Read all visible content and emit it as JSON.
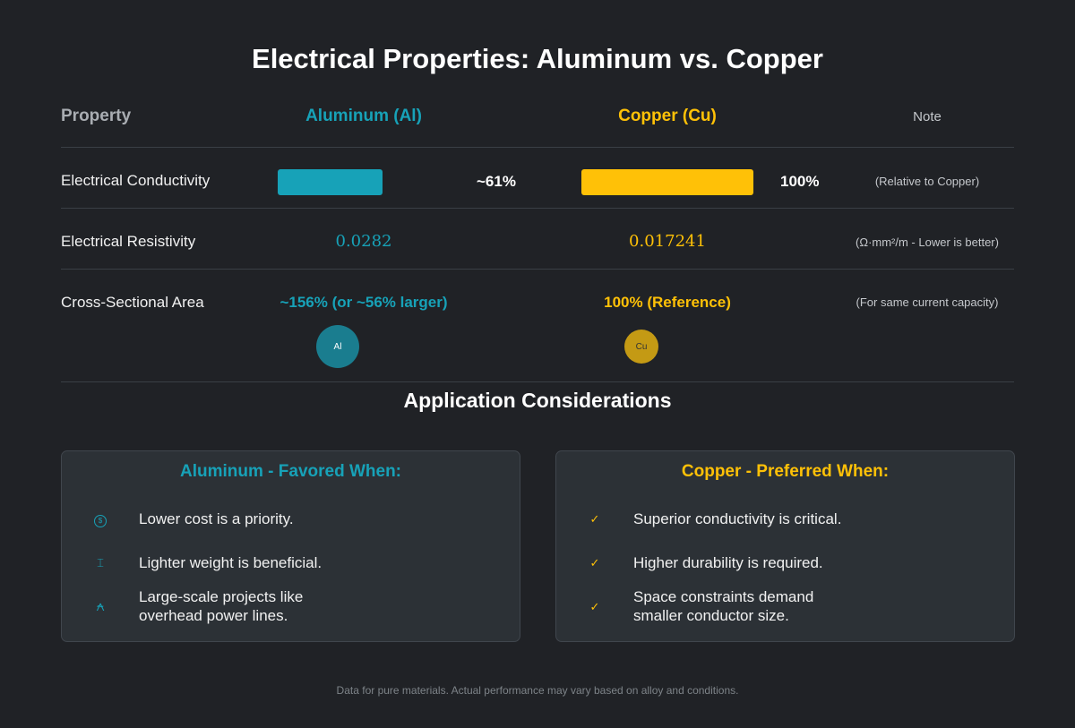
{
  "title": "Electrical Properties: Aluminum vs. Copper",
  "colors": {
    "aluminum": "#17a2b8",
    "copper": "#ffc107",
    "background": "#202226"
  },
  "table": {
    "headers": {
      "property": "Property",
      "aluminum": "Aluminum (Al)",
      "copper": "Copper (Cu)",
      "note": "Note"
    },
    "conductivity": {
      "label": "Electrical Conductivity",
      "al_value": "~61%",
      "al_fraction": 0.61,
      "cu_value": "100%",
      "cu_fraction": 1.0,
      "note": "(Relative to Copper)"
    },
    "resistivity": {
      "label": "Electrical Resistivity",
      "al_value": "0.0282",
      "cu_value": "0.017241",
      "note": "(Ω·mm²/m - Lower is better)"
    },
    "area": {
      "label": "Cross-Sectional Area",
      "al_value": "~156% (or ~56% larger)",
      "cu_value": "100% (Reference)",
      "note": "(For same current capacity)",
      "al_circle": "Al",
      "cu_circle": "Cu"
    }
  },
  "section_title": "Application Considerations",
  "aluminum_card": {
    "title": "Aluminum - Favored When:",
    "items": [
      {
        "icon": "dollar-coin-icon",
        "glyph": "$",
        "text": "Lower cost is a priority."
      },
      {
        "icon": "weight-icon",
        "glyph": "⌶",
        "text": "Lighter weight is beneficial."
      },
      {
        "icon": "power-tower-icon",
        "glyph": "⍲",
        "text": "Large-scale projects like overhead power lines."
      }
    ]
  },
  "copper_card": {
    "title": "Copper - Preferred When:",
    "items": [
      {
        "icon": "check-icon",
        "glyph": "✓",
        "text": "Superior conductivity is critical."
      },
      {
        "icon": "check-icon",
        "glyph": "✓",
        "text": "Higher durability is required."
      },
      {
        "icon": "check-icon",
        "glyph": "✓",
        "text": "Space constraints demand smaller conductor size."
      }
    ]
  },
  "footer": "Data for pure materials. Actual performance may vary based on alloy and conditions."
}
